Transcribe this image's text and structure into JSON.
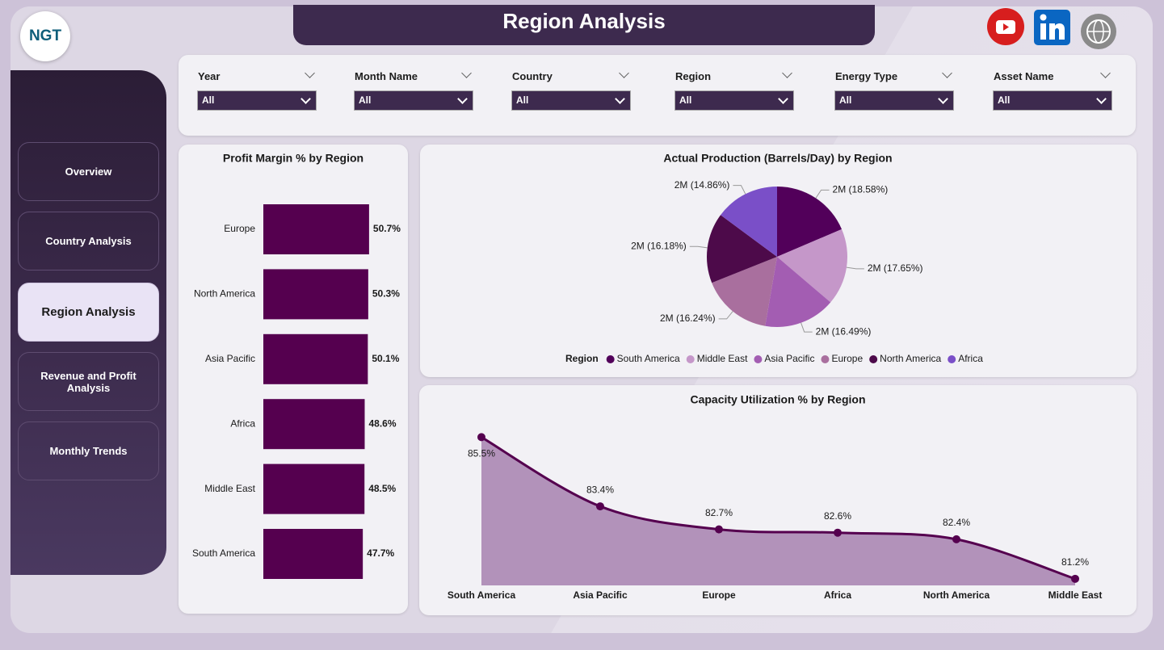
{
  "header": {
    "title": "Region Analysis",
    "logo": "NGT"
  },
  "nav": [
    "Overview",
    "Country Analysis",
    "Region Analysis",
    "Revenue and Profit Analysis",
    "Monthly Trends"
  ],
  "active_nav": 2,
  "filters": [
    {
      "label": "Year",
      "value": "All"
    },
    {
      "label": "Month Name",
      "value": "All"
    },
    {
      "label": "Country",
      "value": "All"
    },
    {
      "label": "Region",
      "value": "All"
    },
    {
      "label": "Energy Type",
      "value": "All"
    },
    {
      "label": "Asset Name",
      "value": "All"
    }
  ],
  "chart_data": [
    {
      "type": "bar",
      "orientation": "horizontal",
      "title": "Profit Margin % by Region",
      "categories": [
        "Europe",
        "North America",
        "Asia Pacific",
        "Africa",
        "Middle East",
        "South America"
      ],
      "values": [
        50.7,
        50.3,
        50.1,
        48.6,
        48.5,
        47.7
      ],
      "value_labels": [
        "50.7%",
        "50.3%",
        "50.1%",
        "48.6%",
        "48.5%",
        "47.7%"
      ],
      "color": "#55004f",
      "xlim": [
        0,
        55
      ]
    },
    {
      "type": "pie",
      "title": "Actual Production (Barrels/Day) by Region",
      "legend_title": "Region",
      "legend": "bottom",
      "categories": [
        "South America",
        "Middle East",
        "Asia Pacific",
        "Europe",
        "North America",
        "Africa"
      ],
      "values": [
        18.58,
        17.65,
        16.49,
        16.24,
        16.18,
        14.86
      ],
      "value_labels": [
        "2M (18.58%)",
        "2M (17.65%)",
        "2M (16.49%)",
        "2M (16.24%)",
        "2M (16.18%)",
        "2M (14.86%)"
      ],
      "colors": [
        "#52005a",
        "#c597c9",
        "#a35db2",
        "#a96f9e",
        "#4d0a4a",
        "#7a4fc8"
      ]
    },
    {
      "type": "area",
      "title": "Capacity Utilization % by Region",
      "categories": [
        "South America",
        "Asia Pacific",
        "Europe",
        "Africa",
        "North America",
        "Middle East"
      ],
      "values": [
        85.5,
        83.4,
        82.7,
        82.6,
        82.4,
        81.2
      ],
      "value_labels": [
        "85.5%",
        "83.4%",
        "82.7%",
        "82.6%",
        "82.4%",
        "81.2%"
      ],
      "color": "#55004f",
      "fill": "#b292ba",
      "ylim": [
        81,
        86
      ]
    }
  ]
}
